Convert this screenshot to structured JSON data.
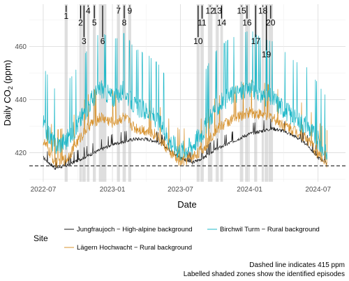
{
  "chart_data": {
    "type": "line",
    "xlabel": "Date",
    "ylabel": "Daily CO",
    "ylabel_sub": "2",
    "ylabel_unit": " (ppm)",
    "ylim": [
      409,
      476
    ],
    "xlim": [
      "2022-05-25",
      "2024-09-12"
    ],
    "y_ticks": [
      420,
      440,
      460
    ],
    "x_ticks": [
      {
        "date": "2022-07-01",
        "label": "2022-07"
      },
      {
        "date": "2023-01-01",
        "label": "2023-01"
      },
      {
        "date": "2023-07-01",
        "label": "2023-07"
      },
      {
        "date": "2024-01-01",
        "label": "2024-01"
      },
      {
        "date": "2024-07-01",
        "label": "2024-07"
      }
    ],
    "grid": true,
    "reference_line": {
      "y": 415,
      "style": "dashed"
    },
    "series": [
      {
        "name": "Jungfraujoch − High-alpine background",
        "color": "#1a1a1a",
        "points": [
          [
            "2022-07-01",
            418
          ],
          [
            "2022-08-01",
            414
          ],
          [
            "2022-09-01",
            415
          ],
          [
            "2022-10-01",
            417
          ],
          [
            "2022-11-01",
            419
          ],
          [
            "2022-12-01",
            421
          ],
          [
            "2023-01-01",
            423
          ],
          [
            "2023-02-01",
            424
          ],
          [
            "2023-03-01",
            425
          ],
          [
            "2023-04-01",
            425
          ],
          [
            "2023-05-01",
            424
          ],
          [
            "2023-06-01",
            421
          ],
          [
            "2023-07-01",
            418
          ],
          [
            "2023-08-01",
            416
          ],
          [
            "2023-09-01",
            418
          ],
          [
            "2023-10-01",
            421
          ],
          [
            "2023-11-01",
            423
          ],
          [
            "2023-12-01",
            425
          ],
          [
            "2024-01-01",
            427
          ],
          [
            "2024-02-01",
            428
          ],
          [
            "2024-03-01",
            429
          ],
          [
            "2024-04-01",
            428
          ],
          [
            "2024-05-01",
            426
          ],
          [
            "2024-06-01",
            423
          ],
          [
            "2024-07-01",
            418
          ],
          [
            "2024-07-25",
            416
          ]
        ]
      },
      {
        "name": "Lägern Hochwacht − Rural background",
        "color": "#d8932f",
        "points": [
          [
            "2022-07-01",
            424
          ],
          [
            "2022-08-01",
            416
          ],
          [
            "2022-09-01",
            417
          ],
          [
            "2022-10-01",
            424
          ],
          [
            "2022-11-01",
            430
          ],
          [
            "2022-12-01",
            433
          ],
          [
            "2023-01-01",
            431
          ],
          [
            "2023-02-01",
            433
          ],
          [
            "2023-03-01",
            429
          ],
          [
            "2023-04-01",
            428
          ],
          [
            "2023-05-01",
            426
          ],
          [
            "2023-06-01",
            420
          ],
          [
            "2023-07-01",
            416
          ],
          [
            "2023-08-01",
            418
          ],
          [
            "2023-09-01",
            421
          ],
          [
            "2023-10-01",
            428
          ],
          [
            "2023-11-01",
            431
          ],
          [
            "2023-12-01",
            433
          ],
          [
            "2024-01-01",
            435
          ],
          [
            "2024-02-01",
            434
          ],
          [
            "2024-03-01",
            433
          ],
          [
            "2024-04-01",
            430
          ],
          [
            "2024-05-01",
            428
          ],
          [
            "2024-06-01",
            425
          ],
          [
            "2024-07-01",
            419
          ],
          [
            "2024-07-25",
            416
          ]
        ]
      },
      {
        "name": "Birchwil Turm − Rural background",
        "color": "#1fb8c8",
        "points": [
          [
            "2022-07-01",
            430
          ],
          [
            "2022-08-01",
            422
          ],
          [
            "2022-09-01",
            424
          ],
          [
            "2022-10-01",
            430
          ],
          [
            "2022-11-01",
            438
          ],
          [
            "2022-12-01",
            444
          ],
          [
            "2023-01-01",
            440
          ],
          [
            "2023-02-01",
            443
          ],
          [
            "2023-03-01",
            437
          ],
          [
            "2023-04-01",
            435
          ],
          [
            "2023-05-01",
            432
          ],
          [
            "2023-06-01",
            424
          ],
          [
            "2023-07-01",
            420
          ],
          [
            "2023-08-01",
            422
          ],
          [
            "2023-09-01",
            428
          ],
          [
            "2023-10-01",
            436
          ],
          [
            "2023-11-01",
            440
          ],
          [
            "2023-12-01",
            442
          ],
          [
            "2024-01-01",
            444
          ],
          [
            "2024-02-01",
            441
          ],
          [
            "2024-03-01",
            440
          ],
          [
            "2024-04-01",
            436
          ],
          [
            "2024-05-01",
            432
          ],
          [
            "2024-06-01",
            430
          ],
          [
            "2024-07-01",
            424
          ],
          [
            "2024-07-25",
            418
          ]
        ]
      }
    ],
    "episodes": [
      {
        "label": "1",
        "start": "2022-08-27",
        "end": "2022-09-04",
        "label_y": 471.5
      },
      {
        "label": "2",
        "start": "2022-10-05",
        "end": "2022-10-12",
        "label_y": 469
      },
      {
        "label": "3",
        "start": "2022-10-13",
        "end": "2022-10-22",
        "label_y": 462
      },
      {
        "label": "4",
        "start": "2022-10-25",
        "end": "2022-11-01",
        "label_y": 473.5
      },
      {
        "label": "5",
        "start": "2022-11-10",
        "end": "2022-11-18",
        "label_y": 469
      },
      {
        "label": "6",
        "start": "2022-11-26",
        "end": "2022-12-16",
        "label_y": 462
      },
      {
        "label": "7",
        "start": "2023-01-13",
        "end": "2023-01-21",
        "label_y": 473.5
      },
      {
        "label": "8",
        "start": "2023-01-28",
        "end": "2023-02-06",
        "label_y": 469
      },
      {
        "label": "9",
        "start": "2023-02-12",
        "end": "2023-02-20",
        "label_y": 473.5
      },
      {
        "label": "10",
        "start": "2023-08-13",
        "end": "2023-08-21",
        "label_y": 462
      },
      {
        "label": "11",
        "start": "2023-08-23",
        "end": "2023-09-01",
        "label_y": 469
      },
      {
        "label": "12",
        "start": "2023-09-12",
        "end": "2023-09-24",
        "label_y": 473.5
      },
      {
        "label": "13",
        "start": "2023-10-03",
        "end": "2023-10-11",
        "label_y": 473.5
      },
      {
        "label": "14",
        "start": "2023-10-15",
        "end": "2023-10-22",
        "label_y": 469
      },
      {
        "label": "15",
        "start": "2023-12-06",
        "end": "2023-12-15",
        "label_y": 473.5
      },
      {
        "label": "16",
        "start": "2023-12-20",
        "end": "2023-12-30",
        "label_y": 469
      },
      {
        "label": "17",
        "start": "2024-01-13",
        "end": "2024-01-21",
        "label_y": 462
      },
      {
        "label": "18",
        "start": "2024-02-02",
        "end": "2024-02-08",
        "label_y": 473.5
      },
      {
        "label": "19",
        "start": "2024-02-10",
        "end": "2024-02-19",
        "label_y": 457
      },
      {
        "label": "20",
        "start": "2024-02-20",
        "end": "2024-03-03",
        "label_y": 469
      }
    ]
  },
  "legend": {
    "title": "Site",
    "items": [
      {
        "label": "Jungfraujoch − High-alpine background",
        "color": "#1a1a1a"
      },
      {
        "label": "Birchwil Turm − Rural background",
        "color": "#1fb8c8"
      },
      {
        "label": "Lägern Hochwacht − Rural background",
        "color": "#d8932f"
      }
    ]
  },
  "caption": {
    "line1": "Dashed line indicates 415 ppm",
    "line2": "Labelled shaded zones show the identified episodes"
  }
}
